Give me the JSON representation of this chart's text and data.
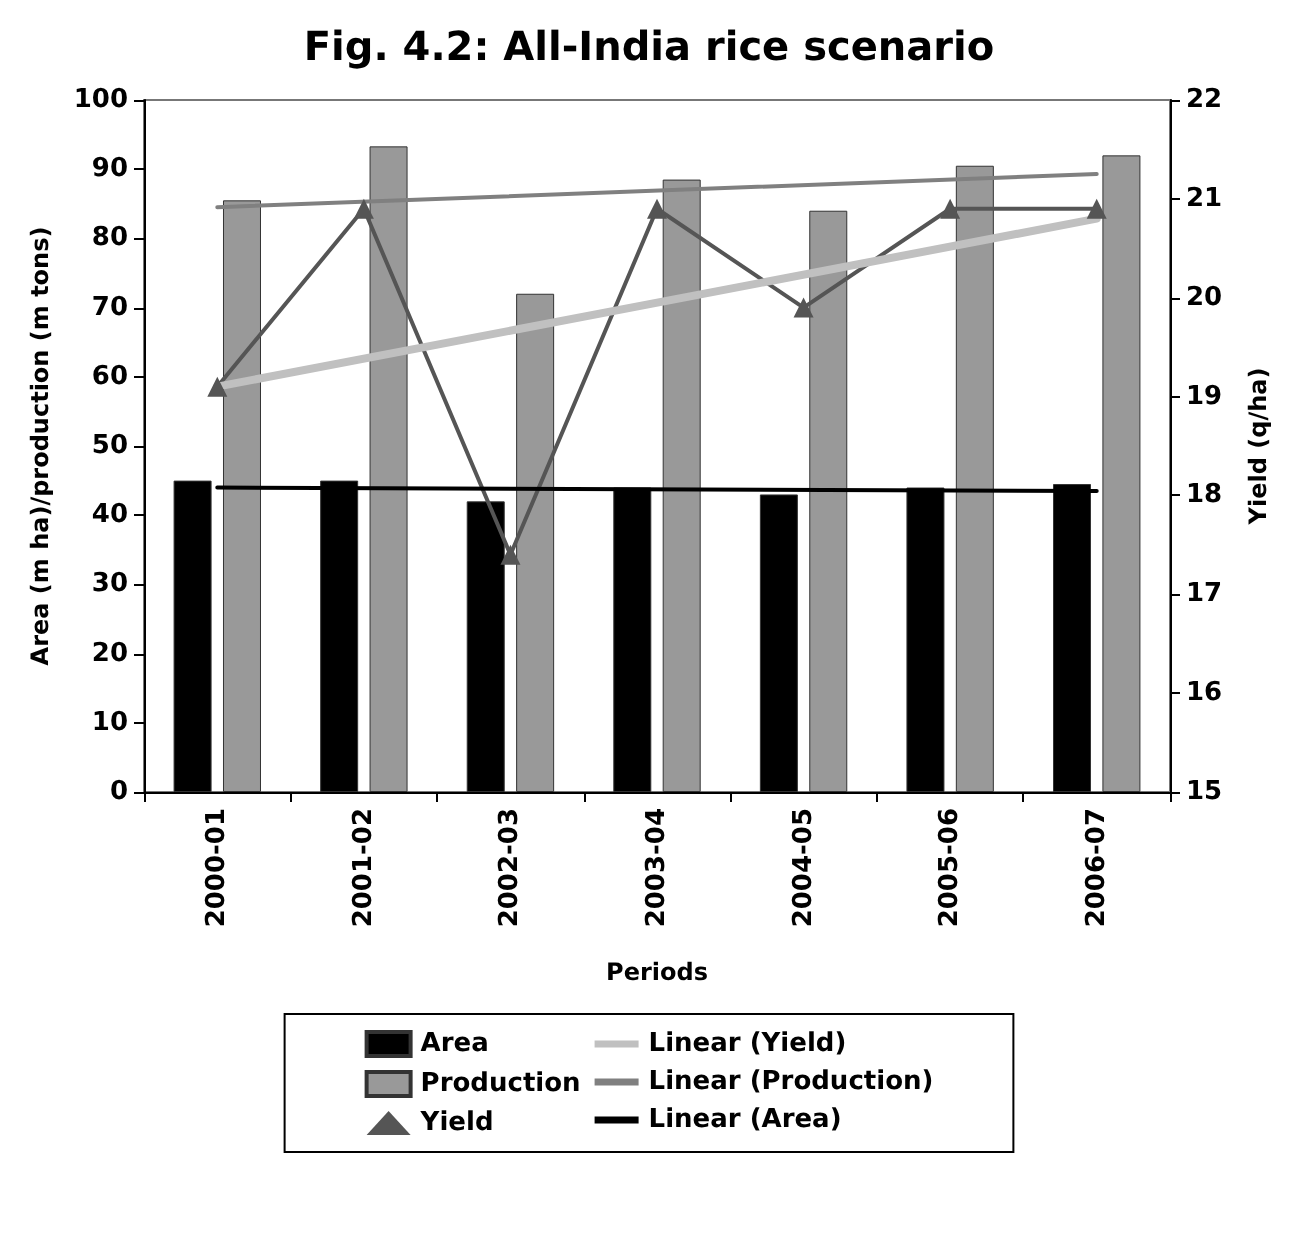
{
  "chart_data": {
    "type": "bar",
    "title": "Fig. 4.2: All-India rice scenario",
    "xlabel": "Periods",
    "ylabel": "Area (m ha)/production (m tons)",
    "y2label": "Yield (q/ha)",
    "categories": [
      "2000-01",
      "2001-02",
      "2002-03",
      "2003-04",
      "2004-05",
      "2005-06",
      "2006-07"
    ],
    "series": [
      {
        "name": "Area",
        "color": "#000000",
        "values": [
          45,
          45,
          42,
          44,
          43,
          44,
          44.5
        ]
      },
      {
        "name": "Production",
        "color": "#999999",
        "values": [
          85.5,
          93.3,
          72,
          88.5,
          84,
          90.5,
          92
        ]
      },
      {
        "name": "Yield",
        "type": "line",
        "axis": "y2",
        "color": "#555555",
        "marker": "triangle",
        "values": [
          19.1,
          20.9,
          17.4,
          20.9,
          19.9,
          20.9,
          20.9
        ]
      },
      {
        "name": "Linear (Yield)",
        "type": "line",
        "axis": "y2",
        "color": "#c0c0c0",
        "marker": "none",
        "values": [
          19.1,
          null,
          null,
          null,
          null,
          null,
          20.8
        ]
      },
      {
        "name": "Linear (Production)",
        "type": "line",
        "color": "#808080",
        "marker": "none",
        "values": [
          84.5,
          null,
          null,
          null,
          null,
          null,
          89.3
        ]
      },
      {
        "name": "Linear (Area)",
        "type": "line",
        "color": "#000000",
        "marker": "none",
        "values": [
          44,
          null,
          null,
          null,
          null,
          null,
          43.5
        ]
      }
    ],
    "ylim": [
      0,
      100
    ],
    "yticks": [
      0,
      10,
      20,
      30,
      40,
      50,
      60,
      70,
      80,
      90,
      100
    ],
    "y2lim": [
      15,
      22
    ],
    "y2ticks": [
      15,
      16,
      17,
      18,
      19,
      20,
      21,
      22
    ],
    "grid": false,
    "legend": "bottom",
    "line_style": "solid"
  }
}
